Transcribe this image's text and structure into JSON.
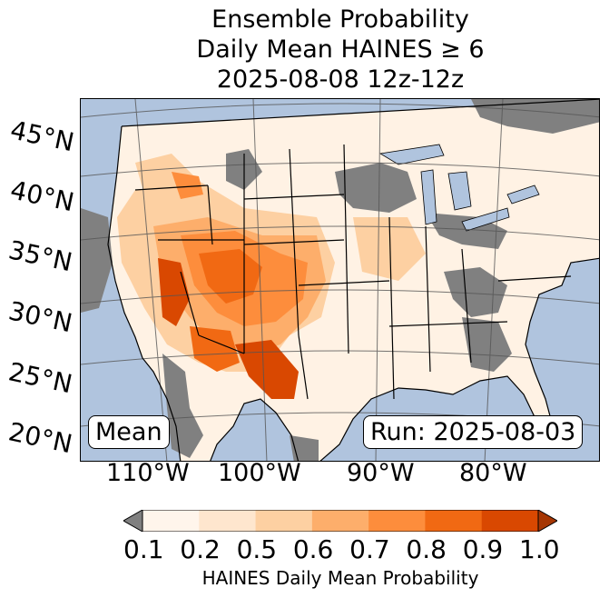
{
  "title": {
    "line1": "Ensemble Probability",
    "line2": "Daily Mean HAINES ≥ 6",
    "line3": "2025-08-08 12z-12z"
  },
  "lat_labels": [
    "45°N",
    "40°N",
    "35°N",
    "30°N",
    "25°N",
    "20°N"
  ],
  "lon_labels": [
    "110°W",
    "100°W",
    "90°W",
    "80°W"
  ],
  "stat_label": "Mean",
  "run_label": "Run: 2025-08-03",
  "colorbar": {
    "ticks": [
      "0.1",
      "0.2",
      "0.5",
      "0.6",
      "0.7",
      "0.8",
      "0.9",
      "1.0"
    ],
    "label": "HAINES Daily Mean Probability",
    "colors": [
      "#fff5eb",
      "#fee6ce",
      "#fdd0a2",
      "#fdae6b",
      "#fd8d3c",
      "#f16913",
      "#d94801"
    ],
    "under_color": "#808080",
    "over_color": "#a63603"
  },
  "map_colors": {
    "ocean": "#b0c4de",
    "land_low": "#fff5eb",
    "no_data": "#808080",
    "lakes": "#b0c4de"
  }
}
